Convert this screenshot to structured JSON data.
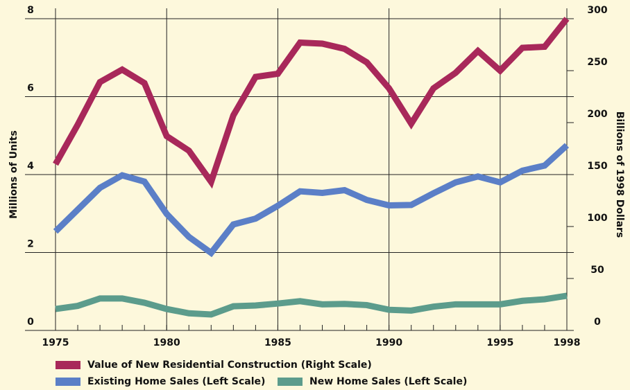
{
  "chart_data": {
    "type": "line",
    "x": [
      1975,
      1976,
      1977,
      1978,
      1979,
      1980,
      1981,
      1982,
      1983,
      1984,
      1985,
      1986,
      1987,
      1988,
      1989,
      1990,
      1991,
      1992,
      1993,
      1994,
      1995,
      1996,
      1997,
      1998
    ],
    "xlim": [
      1975,
      1998
    ],
    "xticks": [
      1975,
      1980,
      1985,
      1990,
      1995,
      1998
    ],
    "ylim": [
      0,
      8
    ],
    "yticks": [
      0,
      2,
      4,
      6,
      8
    ],
    "y2lim": [
      0,
      300
    ],
    "y2ticks": [
      0,
      50,
      100,
      150,
      200,
      250,
      300
    ],
    "ylabel": "Millions of Units",
    "y2label": "Billions of 1998 Dollars",
    "grid": true,
    "series": [
      {
        "name": "Value of New Residential Construction (Right Scale)",
        "color": "#a8285a",
        "axis": "y2",
        "values": [
          160,
          198,
          239,
          251,
          238,
          187,
          173,
          143,
          207,
          244,
          247,
          277,
          276,
          271,
          258,
          233,
          199,
          233,
          248,
          269,
          250,
          272,
          273,
          300
        ]
      },
      {
        "name": "Existing Home Sales (Left Scale)",
        "color": "#5b7fc7",
        "values": [
          2.54,
          3.1,
          3.66,
          3.98,
          3.82,
          2.99,
          2.4,
          1.99,
          2.72,
          2.87,
          3.2,
          3.57,
          3.53,
          3.6,
          3.35,
          3.21,
          3.22,
          3.52,
          3.8,
          3.95,
          3.8,
          4.1,
          4.23,
          4.75
        ]
      },
      {
        "name": "New Home Sales (Left Scale)",
        "color": "#5c9c8c",
        "values": [
          0.55,
          0.63,
          0.82,
          0.82,
          0.71,
          0.55,
          0.44,
          0.41,
          0.62,
          0.64,
          0.69,
          0.75,
          0.67,
          0.68,
          0.65,
          0.53,
          0.51,
          0.61,
          0.67,
          0.67,
          0.67,
          0.76,
          0.8,
          0.89
        ]
      }
    ]
  }
}
